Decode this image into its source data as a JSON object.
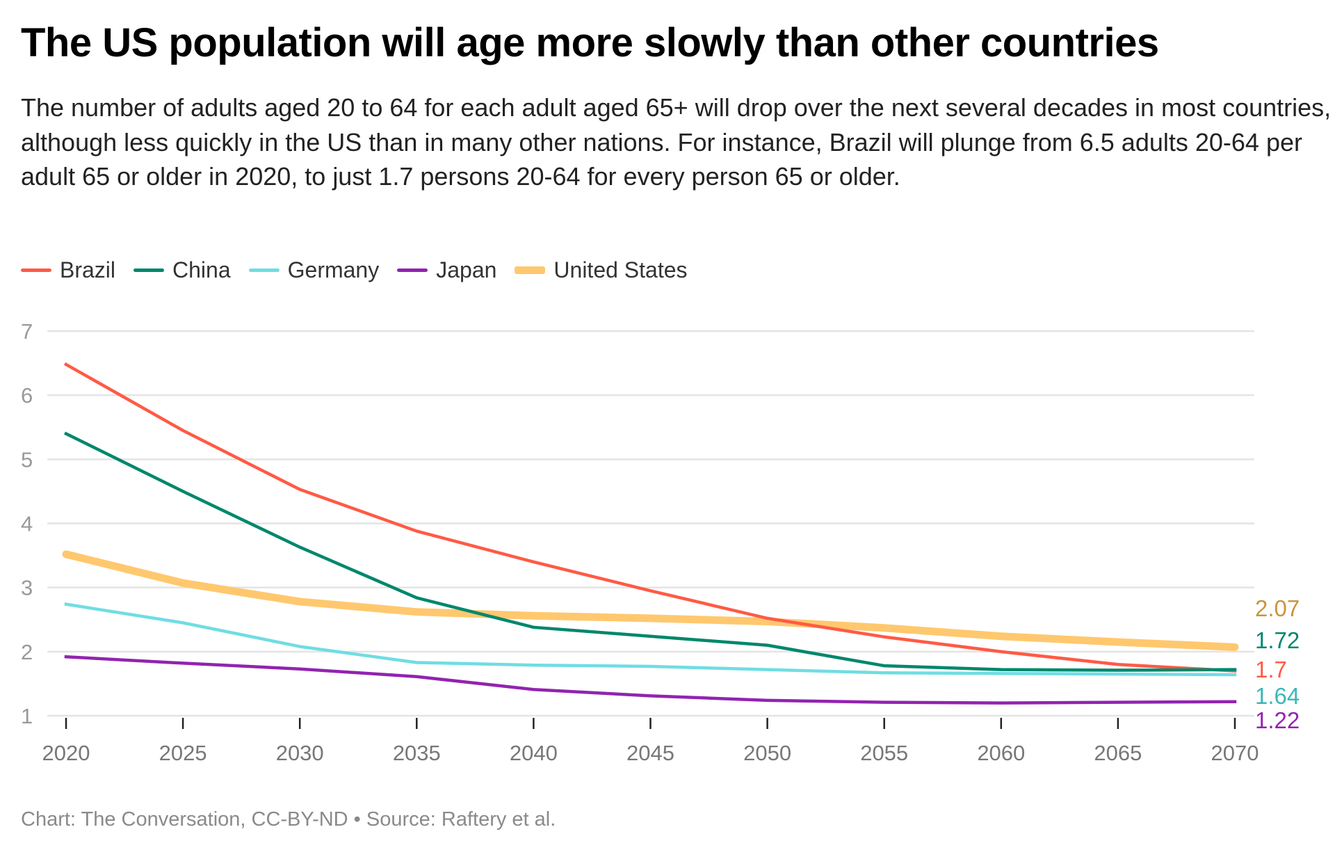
{
  "title": "The US population will age more slowly than other countries",
  "subtitle": "The number of adults aged 20 to 64 for each adult aged 65+ will drop over the next several decades in most countries, although less quickly in the US than in many other nations. For instance, Brazil will plunge from 6.5 adults 20-64 per adult 65 or older in 2020, to just 1.7 persons 20-64 for every person 65 or older.",
  "footer": "Chart: The Conversation, CC-BY-ND • Source: Raftery et al.",
  "chart_data": {
    "type": "line",
    "title": "The US population will age more slowly than other countries",
    "xlabel": "",
    "ylabel": "",
    "x": [
      2020,
      2025,
      2030,
      2035,
      2040,
      2045,
      2050,
      2055,
      2060,
      2065,
      2070
    ],
    "xticks": [
      "2020",
      "2025",
      "2030",
      "2035",
      "2040",
      "2045",
      "2050",
      "2055",
      "2060",
      "2065",
      "2070"
    ],
    "yticks": [
      "1",
      "2",
      "3",
      "4",
      "5",
      "6",
      "7"
    ],
    "ylim": [
      1,
      7
    ],
    "grid": true,
    "legend": "top-left",
    "series": [
      {
        "name": "Brazil",
        "color": "#ff5a45",
        "width": "normal",
        "end_label": "1.7",
        "label_color": "#ff5a45",
        "values": [
          6.48,
          5.45,
          4.53,
          3.88,
          3.4,
          2.95,
          2.52,
          2.23,
          2.0,
          1.8,
          1.7
        ]
      },
      {
        "name": "China",
        "color": "#00876c",
        "width": "normal",
        "end_label": "1.72",
        "label_color": "#00876c",
        "values": [
          5.4,
          4.5,
          3.63,
          2.84,
          2.38,
          2.24,
          2.1,
          1.78,
          1.72,
          1.71,
          1.72
        ]
      },
      {
        "name": "Germany",
        "color": "#6fdde3",
        "width": "normal",
        "end_label": "1.64",
        "label_color": "#3ab8b8",
        "values": [
          2.74,
          2.45,
          2.08,
          1.83,
          1.79,
          1.77,
          1.72,
          1.67,
          1.66,
          1.65,
          1.64
        ]
      },
      {
        "name": "Japan",
        "color": "#9223b0",
        "width": "normal",
        "end_label": "1.22",
        "label_color": "#9223b0",
        "values": [
          1.92,
          1.82,
          1.73,
          1.61,
          1.41,
          1.31,
          1.24,
          1.21,
          1.2,
          1.21,
          1.22
        ]
      },
      {
        "name": "United States",
        "color": "#ffc86e",
        "width": "thick",
        "end_label": "2.07",
        "label_color": "#c8963c",
        "values": [
          3.52,
          3.07,
          2.78,
          2.62,
          2.56,
          2.52,
          2.47,
          2.37,
          2.24,
          2.15,
          2.07
        ]
      }
    ]
  }
}
